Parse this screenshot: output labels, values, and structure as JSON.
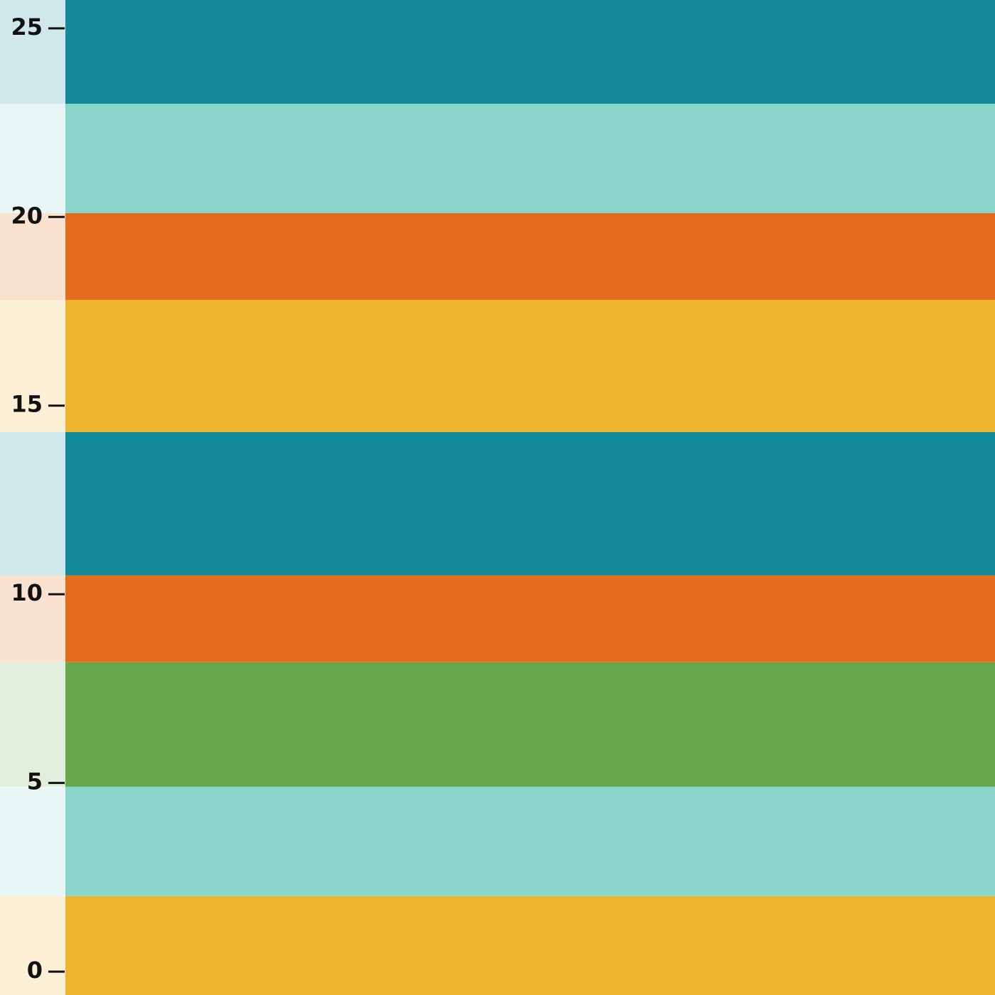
{
  "chart_data": {
    "type": "bands",
    "ylim": [
      -0.62,
      25.75
    ],
    "yticks": [
      0,
      5,
      10,
      15,
      20,
      25
    ],
    "bands": [
      {
        "color": "#edb42d",
        "range": [
          -0.62,
          2.0
        ]
      },
      {
        "color": "#8ad4cc",
        "range": [
          2.0,
          4.9
        ]
      },
      {
        "color": "#66a84b",
        "range": [
          4.9,
          8.2
        ]
      },
      {
        "color": "#e66c1b",
        "range": [
          8.2,
          10.5
        ]
      },
      {
        "color": "#138a9a",
        "range": [
          10.5,
          14.3
        ]
      },
      {
        "color": "#edb42d",
        "range": [
          14.3,
          17.8
        ]
      },
      {
        "color": "#e66c1b",
        "range": [
          17.8,
          20.1
        ]
      },
      {
        "color": "#8ad4cc",
        "range": [
          20.1,
          23.0
        ]
      },
      {
        "color": "#138a9a",
        "range": [
          23.0,
          25.75
        ]
      }
    ]
  }
}
